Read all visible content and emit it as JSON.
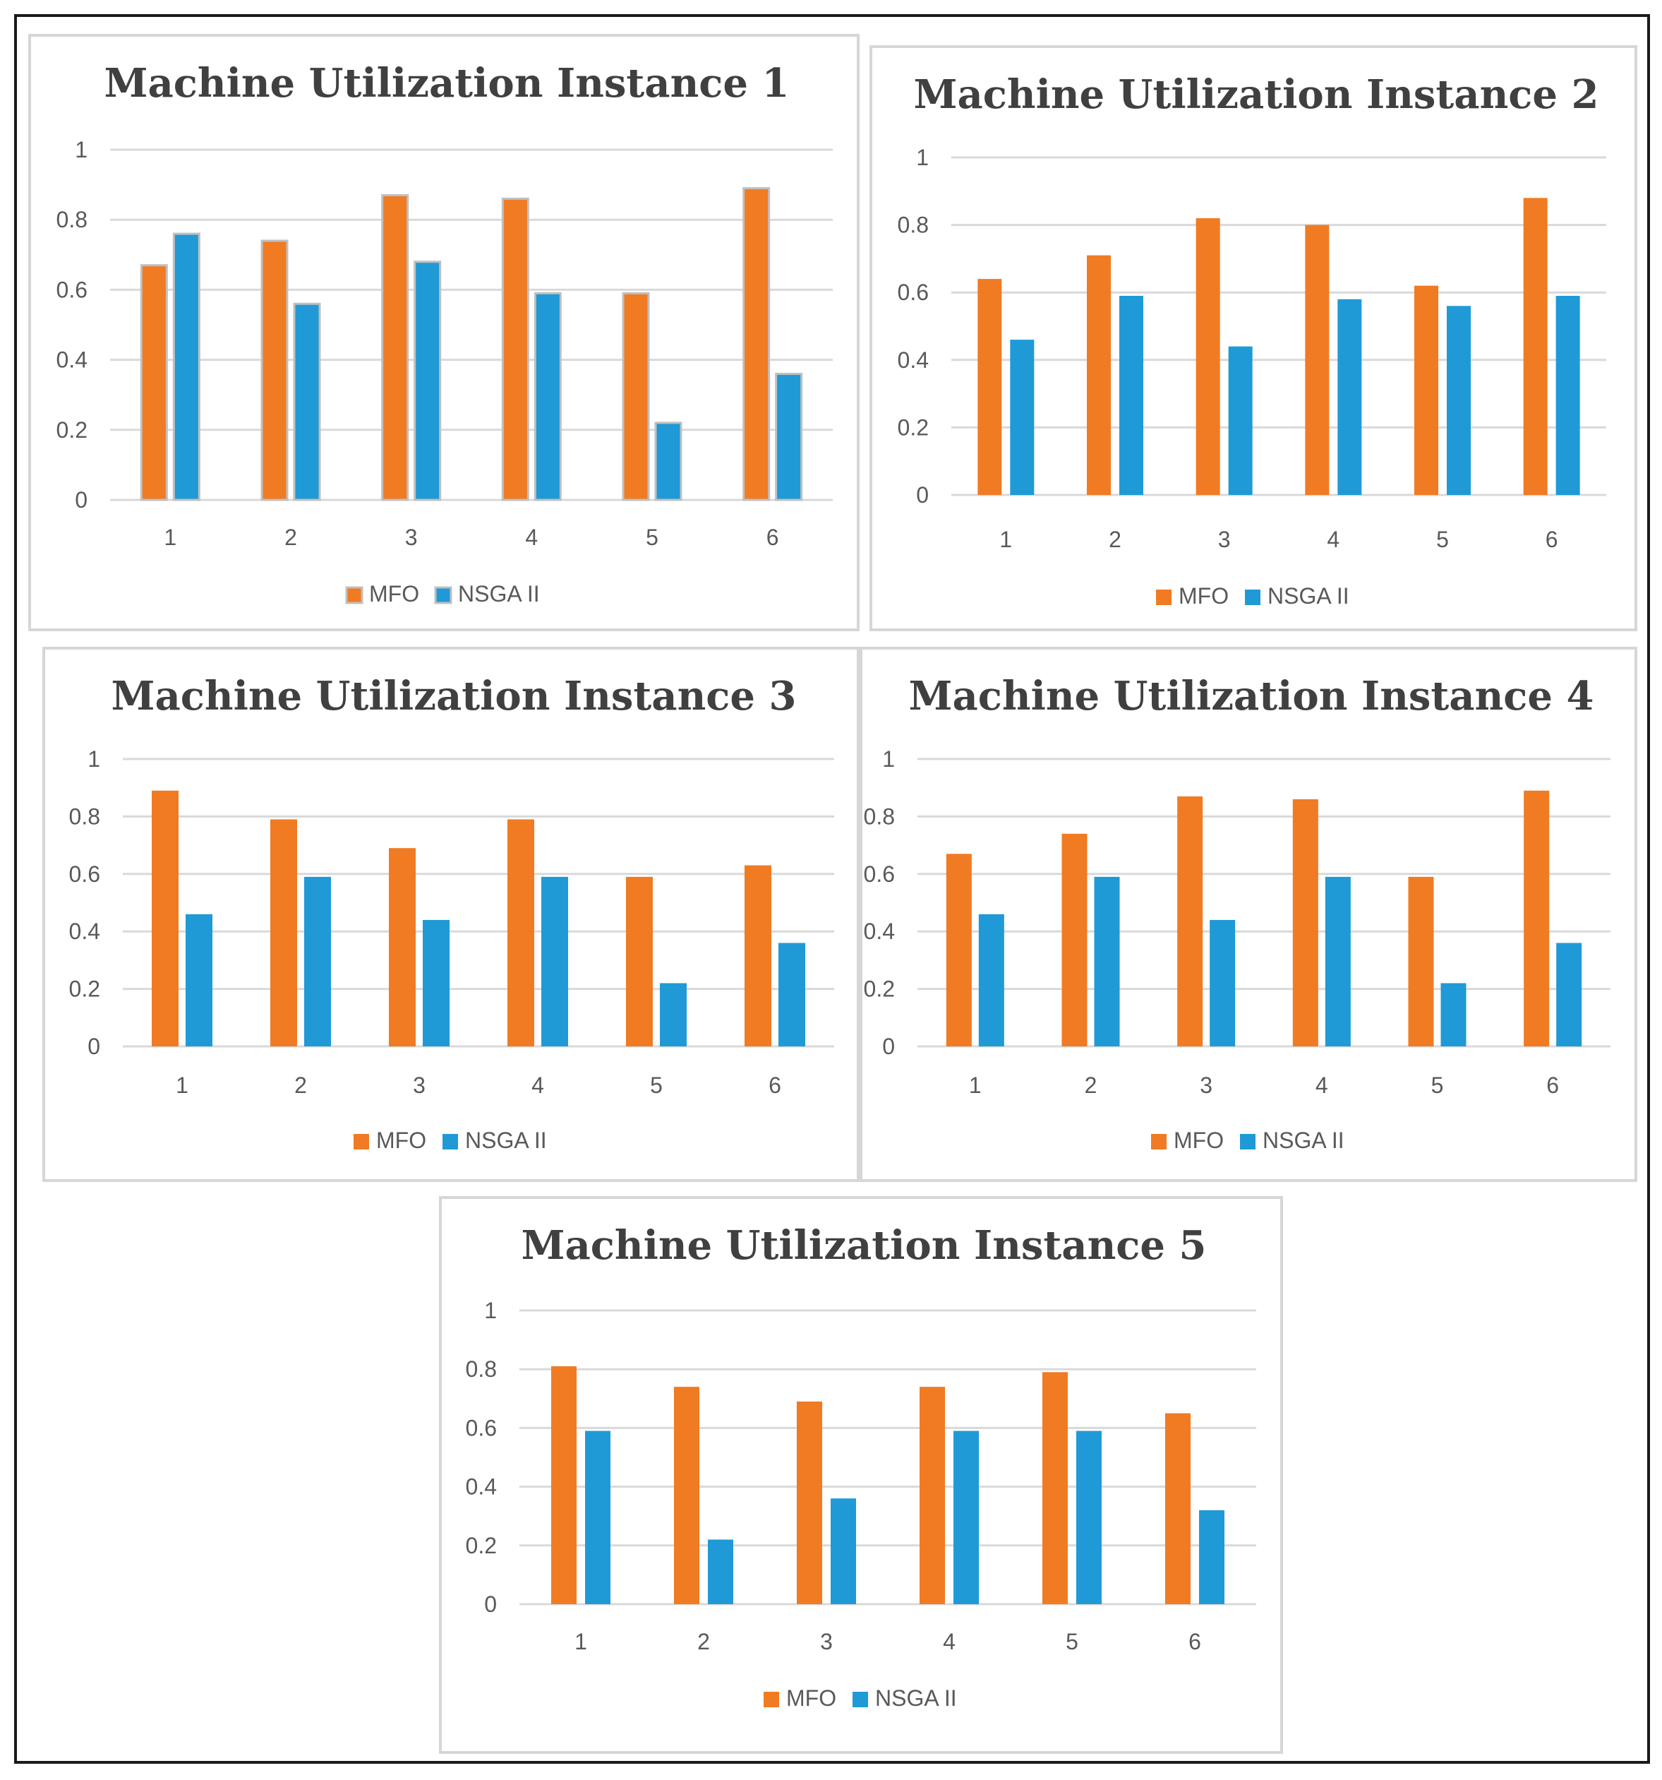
{
  "colors": {
    "mfo": "#f07b23",
    "nsga": "#1f9ad6",
    "mfo_edge": "#c0c0c0",
    "nsga_edge": "#c0c0c0"
  },
  "chart_data": [
    {
      "type": "bar",
      "title": "Machine Utilization Instance 1",
      "categories": [
        "1",
        "2",
        "3",
        "4",
        "5",
        "6"
      ],
      "yticks": [
        "0",
        "0.2",
        "0.4",
        "0.6",
        "0.8",
        "1"
      ],
      "ylim": [
        0,
        1
      ],
      "xlabel": "",
      "ylabel": "",
      "legend": "bottom",
      "series": [
        {
          "name": "MFO",
          "values": [
            0.67,
            0.74,
            0.87,
            0.86,
            0.59,
            0.89
          ]
        },
        {
          "name": "NSGA II",
          "values": [
            0.76,
            0.56,
            0.68,
            0.59,
            0.22,
            0.36
          ]
        }
      ]
    },
    {
      "type": "bar",
      "title": "Machine Utilization Instance 2",
      "categories": [
        "1",
        "2",
        "3",
        "4",
        "5",
        "6"
      ],
      "yticks": [
        "0",
        "0.2",
        "0.4",
        "0.6",
        "0.8",
        "1"
      ],
      "ylim": [
        0,
        1
      ],
      "xlabel": "",
      "ylabel": "",
      "legend": "bottom",
      "series": [
        {
          "name": "MFO",
          "values": [
            0.64,
            0.71,
            0.82,
            0.8,
            0.62,
            0.88
          ]
        },
        {
          "name": "NSGA II",
          "values": [
            0.46,
            0.59,
            0.44,
            0.58,
            0.56,
            0.59
          ]
        }
      ]
    },
    {
      "type": "bar",
      "title": "Machine Utilization Instance 3",
      "categories": [
        "1",
        "2",
        "3",
        "4",
        "5",
        "6"
      ],
      "yticks": [
        "0",
        "0.2",
        "0.4",
        "0.6",
        "0.8",
        "1"
      ],
      "ylim": [
        0,
        1
      ],
      "xlabel": "",
      "ylabel": "",
      "legend": "bottom",
      "series": [
        {
          "name": "MFO",
          "values": [
            0.89,
            0.79,
            0.69,
            0.79,
            0.59,
            0.63
          ]
        },
        {
          "name": "NSGA II",
          "values": [
            0.46,
            0.59,
            0.44,
            0.59,
            0.22,
            0.36
          ]
        }
      ]
    },
    {
      "type": "bar",
      "title": "Machine Utilization Instance 4",
      "categories": [
        "1",
        "2",
        "3",
        "4",
        "5",
        "6"
      ],
      "yticks": [
        "0",
        "0.2",
        "0.4",
        "0.6",
        "0.8",
        "1"
      ],
      "ylim": [
        0,
        1
      ],
      "xlabel": "",
      "ylabel": "",
      "legend": "bottom",
      "series": [
        {
          "name": "MFO",
          "values": [
            0.67,
            0.74,
            0.87,
            0.86,
            0.59,
            0.89
          ]
        },
        {
          "name": "NSGA II",
          "values": [
            0.46,
            0.59,
            0.44,
            0.59,
            0.22,
            0.36
          ]
        }
      ]
    },
    {
      "type": "bar",
      "title": "Machine Utilization Instance 5",
      "categories": [
        "1",
        "2",
        "3",
        "4",
        "5",
        "6"
      ],
      "yticks": [
        "0",
        "0.2",
        "0.4",
        "0.6",
        "0.8",
        "1"
      ],
      "ylim": [
        0,
        1
      ],
      "xlabel": "",
      "ylabel": "",
      "legend": "bottom",
      "series": [
        {
          "name": "MFO",
          "values": [
            0.81,
            0.74,
            0.69,
            0.74,
            0.79,
            0.65
          ]
        },
        {
          "name": "NSGA II",
          "values": [
            0.59,
            0.22,
            0.36,
            0.59,
            0.59,
            0.32
          ]
        }
      ]
    }
  ]
}
